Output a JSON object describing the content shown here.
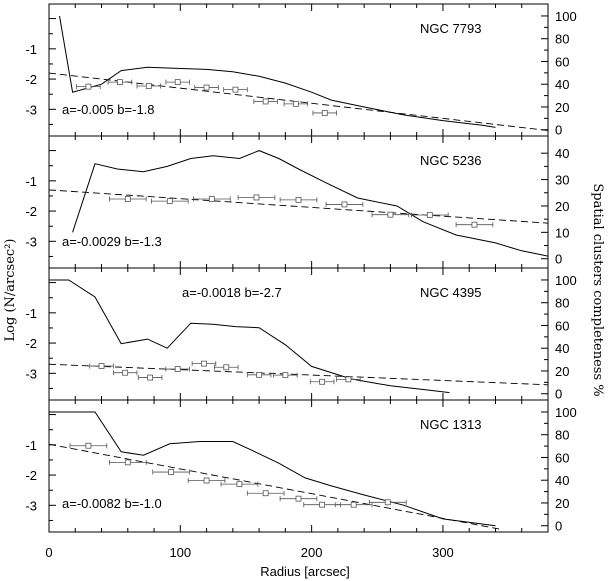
{
  "chart_data": {
    "type": "line",
    "xlabel": "Radius [arcsec]",
    "ylabel_left": "Log (N/arcsec²)",
    "ylabel_right": "Spatial clusters completeness %",
    "xlim": [
      0,
      380
    ],
    "xticks": [
      0,
      100,
      200,
      300
    ],
    "panels": [
      {
        "name": "NGC 7793",
        "annotation": "a=-0.005 b=-1.8",
        "ylim_left": [
          -3.75,
          0.35
        ],
        "yticks_left": [
          -1,
          -2,
          -3
        ],
        "ylim_right": [
          -2,
          107
        ],
        "yticks_right": [
          0,
          20,
          40,
          60,
          80,
          100
        ],
        "completeness": {
          "x": [
            8,
            18,
            40,
            55,
            75,
            95,
            120,
            140,
            160,
            180,
            200,
            215,
            240,
            270,
            300,
            330,
            340
          ],
          "y": [
            100,
            33,
            40,
            52,
            55,
            54,
            53,
            51,
            47,
            41,
            33,
            26,
            20,
            13,
            8,
            4,
            2
          ]
        },
        "fit_line": {
          "x": [
            0,
            380
          ],
          "y": [
            -1.8,
            -3.7
          ]
        },
        "points": {
          "x": [
            30,
            54,
            76,
            98,
            120,
            142,
            165,
            188,
            210
          ],
          "y": [
            -2.25,
            -2.1,
            -2.23,
            -2.1,
            -2.28,
            -2.35,
            -2.74,
            -2.82,
            -3.12
          ],
          "xerr": 9
        }
      },
      {
        "name": "NGC 5236",
        "annotation": "a=-0.0029 b=-1.3",
        "ylim_left": [
          -3.75,
          0.35
        ],
        "yticks_left": [
          -1,
          -2,
          -3
        ],
        "ylim_right": [
          -2,
          45
        ],
        "yticks_right": [
          0,
          10,
          20,
          30,
          40
        ],
        "completeness": {
          "x": [
            18,
            35,
            52,
            72,
            90,
            108,
            125,
            145,
            160,
            175,
            190,
            210,
            235,
            265,
            285,
            310,
            340,
            360,
            380
          ],
          "y": [
            10,
            36,
            34,
            33,
            35,
            38,
            39,
            38,
            41,
            38,
            34,
            29,
            23,
            20,
            14,
            9,
            6,
            3,
            1
          ]
        },
        "fit_line": {
          "x": [
            0,
            380
          ],
          "y": [
            -1.3,
            -2.4
          ]
        },
        "points": {
          "x": [
            60,
            92,
            124,
            158,
            190,
            225,
            260,
            290,
            324
          ],
          "y": [
            -1.6,
            -1.67,
            -1.6,
            -1.55,
            -1.63,
            -1.78,
            -2.12,
            -2.13,
            -2.45
          ],
          "xerr": 14
        }
      },
      {
        "name": "NGC 4395",
        "annotation": "a=-0.0018 b=-2.7",
        "ylim_left": [
          -3.75,
          0.35
        ],
        "yticks_left": [
          -1,
          -2,
          -3
        ],
        "ylim_right": [
          -2,
          107
        ],
        "yticks_right": [
          0,
          20,
          40,
          60,
          80,
          100
        ],
        "completeness": {
          "x": [
            0,
            15,
            35,
            55,
            75,
            90,
            108,
            125,
            142,
            160,
            180,
            200,
            230,
            260,
            290,
            305
          ],
          "y": [
            100,
            100,
            85,
            44,
            48,
            40,
            62,
            61,
            59,
            58,
            43,
            24,
            13,
            7,
            3,
            1
          ]
        },
        "fit_line": {
          "x": [
            0,
            380
          ],
          "y": [
            -2.7,
            -3.38
          ]
        },
        "points": {
          "x": [
            40,
            58,
            77,
            98,
            118,
            135,
            160,
            180,
            208,
            228
          ],
          "y": [
            -2.76,
            -2.98,
            -3.14,
            -2.86,
            -2.68,
            -2.8,
            -3.05,
            -3.06,
            -3.28,
            -3.2
          ],
          "xerr": 9
        }
      },
      {
        "name": "NGC 1313",
        "annotation": "a=-0.0082 b=-1.0",
        "ylim_left": [
          -3.75,
          0.35
        ],
        "yticks_left": [
          -1,
          -2,
          -3
        ],
        "ylim_right": [
          -2,
          107
        ],
        "yticks_right": [
          0,
          20,
          40,
          60,
          80,
          100
        ],
        "completeness": {
          "x": [
            0,
            35,
            55,
            72,
            92,
            115,
            140,
            155,
            175,
            195,
            215,
            240,
            270,
            300,
            340
          ],
          "y": [
            100,
            100,
            65,
            62,
            72,
            74,
            74,
            66,
            55,
            42,
            35,
            27,
            18,
            6,
            0
          ]
        },
        "fit_line": {
          "x": [
            0,
            345
          ],
          "y": [
            -0.98,
            -3.8
          ]
        },
        "points": {
          "x": [
            30,
            60,
            93,
            120,
            145,
            165,
            190,
            208,
            232,
            258
          ],
          "y": [
            -1.03,
            -1.58,
            -1.9,
            -2.18,
            -2.3,
            -2.6,
            -2.78,
            -2.98,
            -2.98,
            -2.9
          ],
          "xerr": 14
        }
      }
    ]
  }
}
